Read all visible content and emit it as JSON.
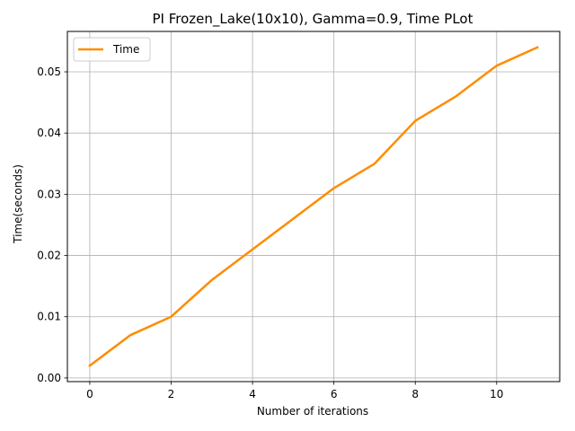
{
  "chart_data": {
    "type": "line",
    "title": "PI Frozen_Lake(10x10), Gamma=0.9, Time PLot",
    "xlabel": "Number of iterations",
    "ylabel": "Time(seconds)",
    "xlim": [
      -0.55,
      11.55
    ],
    "ylim": [
      -0.0006,
      0.0566
    ],
    "xticks": [
      0,
      2,
      4,
      6,
      8,
      10
    ],
    "xtick_labels": [
      "0",
      "2",
      "4",
      "6",
      "8",
      "10"
    ],
    "yticks": [
      0.0,
      0.01,
      0.02,
      0.03,
      0.04,
      0.05
    ],
    "ytick_labels": [
      "0.00",
      "0.01",
      "0.02",
      "0.03",
      "0.04",
      "0.05"
    ],
    "grid": true,
    "legend_position": "top-left",
    "series": [
      {
        "name": "Time",
        "color": "#ff8c00",
        "x": [
          0,
          1,
          2,
          3,
          4,
          5,
          6,
          7,
          8,
          9,
          10,
          11
        ],
        "y": [
          0.002,
          0.007,
          0.01,
          0.016,
          0.021,
          0.026,
          0.031,
          0.035,
          0.042,
          0.046,
          0.051,
          0.054
        ]
      }
    ]
  }
}
